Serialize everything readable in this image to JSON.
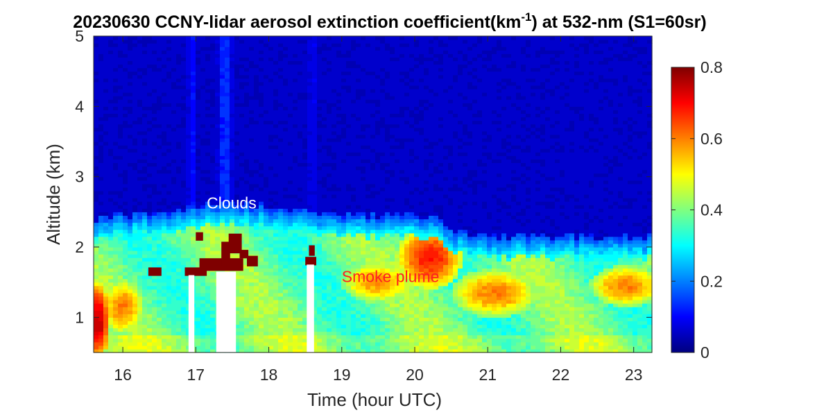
{
  "chart_data": {
    "type": "heatmap",
    "title": "20230630 CCNY-lidar aerosol extinction coefficient(km",
    "title_superscript": "-1",
    "title_suffix": ") at 532-nm (S1=60sr)",
    "xlabel": "Time (hour UTC)",
    "ylabel": "Altitude (km)",
    "xlim": [
      15.6,
      23.25
    ],
    "ylim": [
      0.5,
      5
    ],
    "x_ticks": [
      16,
      17,
      18,
      19,
      20,
      21,
      22,
      23
    ],
    "y_ticks": [
      1,
      2,
      3,
      4,
      5
    ],
    "colorbar": {
      "min": 0,
      "max": 0.8,
      "ticks": [
        0,
        0.2,
        0.4,
        0.6,
        0.8
      ],
      "colormap": "jet"
    },
    "annotations": [
      {
        "text": "Clouds",
        "x": 17.15,
        "y": 2.55,
        "color": "#ffffff"
      },
      {
        "text": "Smoke plume",
        "x": 19.0,
        "y": 1.5,
        "color": "#ff2020"
      }
    ],
    "boundary_layer_top_km": [
      {
        "time": 15.6,
        "alt": 2.25
      },
      {
        "time": 16.5,
        "alt": 2.35
      },
      {
        "time": 17.5,
        "alt": 2.5
      },
      {
        "time": 18.5,
        "alt": 2.35
      },
      {
        "time": 19.5,
        "alt": 2.3
      },
      {
        "time": 20.3,
        "alt": 2.3
      },
      {
        "time": 20.6,
        "alt": 2.05
      },
      {
        "time": 21.5,
        "alt": 2.0
      },
      {
        "time": 22.5,
        "alt": 2.0
      },
      {
        "time": 23.25,
        "alt": 2.0
      }
    ],
    "smoke_features": [
      {
        "time": 15.65,
        "alt": 0.95,
        "value": 0.75,
        "width_h": 0.18,
        "height_km": 0.55
      },
      {
        "time": 16.0,
        "alt": 1.15,
        "value": 0.6,
        "width_h": 0.3,
        "height_km": 0.4
      },
      {
        "time": 20.2,
        "alt": 1.85,
        "value": 0.68,
        "width_h": 0.45,
        "height_km": 0.45
      },
      {
        "time": 21.1,
        "alt": 1.35,
        "value": 0.6,
        "width_h": 0.6,
        "height_km": 0.35
      },
      {
        "time": 22.9,
        "alt": 1.45,
        "value": 0.6,
        "width_h": 0.5,
        "height_km": 0.3
      },
      {
        "time": 19.5,
        "alt": 1.5,
        "value": 0.58,
        "width_h": 0.5,
        "height_km": 0.3
      }
    ],
    "cloud_cells": [
      {
        "time": 16.35,
        "alt": 1.65,
        "dt": 0.18,
        "dz": 0.12
      },
      {
        "time": 16.85,
        "alt": 1.65,
        "dt": 0.3,
        "dz": 0.12
      },
      {
        "time": 17.0,
        "alt": 2.15,
        "dt": 0.1,
        "dz": 0.12
      },
      {
        "time": 17.05,
        "alt": 1.75,
        "dt": 0.6,
        "dz": 0.18
      },
      {
        "time": 17.35,
        "alt": 1.9,
        "dt": 0.12,
        "dz": 0.35
      },
      {
        "time": 17.45,
        "alt": 2.05,
        "dt": 0.18,
        "dz": 0.28
      },
      {
        "time": 17.6,
        "alt": 1.9,
        "dt": 0.12,
        "dz": 0.12
      },
      {
        "time": 17.7,
        "alt": 1.8,
        "dt": 0.15,
        "dz": 0.15
      },
      {
        "time": 18.5,
        "alt": 1.8,
        "dt": 0.15,
        "dz": 0.12
      },
      {
        "time": 18.55,
        "alt": 1.95,
        "dt": 0.08,
        "dz": 0.15
      }
    ],
    "no_data_gaps": [
      {
        "t0": 16.9,
        "t1": 16.98,
        "a0": 0.5,
        "a1": 1.6
      },
      {
        "t0": 17.28,
        "t1": 17.55,
        "a0": 0.5,
        "a1": 1.65
      },
      {
        "t0": 18.52,
        "t1": 18.62,
        "a0": 0.5,
        "a1": 1.75
      }
    ],
    "upper_plumes": [
      {
        "time": 17.4,
        "width_h": 0.12,
        "value": 0.12
      },
      {
        "time": 16.95,
        "width_h": 0.08,
        "value": 0.07
      },
      {
        "time": 18.6,
        "width_h": 0.06,
        "value": 0.06
      }
    ]
  }
}
